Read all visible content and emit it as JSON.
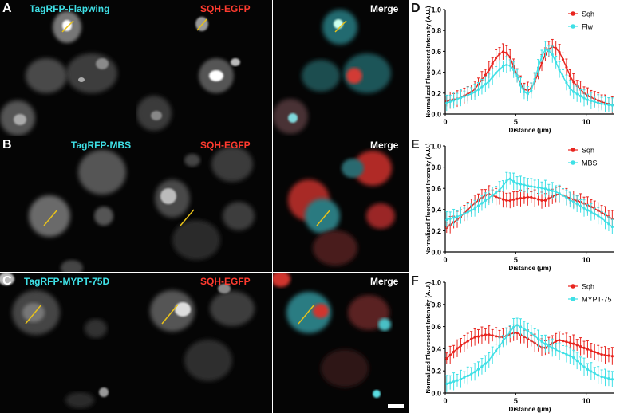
{
  "figure": {
    "rows": [
      {
        "letter": "A",
        "channels": [
          {
            "label": "TagRFP-Flapwing",
            "color": "#3fe0e6"
          },
          {
            "label": "SQH-EGFP",
            "color": "#ff3b2f"
          },
          {
            "label": "Merge",
            "color": "#ffffff"
          }
        ]
      },
      {
        "letter": "B",
        "channels": [
          {
            "label": "TagRFP-MBS",
            "color": "#3fe0e6"
          },
          {
            "label": "SQH-EGFP",
            "color": "#ff3b2f"
          },
          {
            "label": "Merge",
            "color": "#ffffff"
          }
        ]
      },
      {
        "letter": "C",
        "channels": [
          {
            "label": "TagRFP-MYPT-75D",
            "color": "#3fe0e6"
          },
          {
            "label": "SQH-EGFP",
            "color": "#ff3b2f"
          },
          {
            "label": "Merge",
            "color": "#ffffff"
          }
        ]
      }
    ]
  },
  "chart_data": [
    {
      "type": "line",
      "panel": "D",
      "xlabel": "Distance (μm)",
      "ylabel": "Normalized Fluorescent Intensity (A.U.)",
      "xlim": [
        0,
        12
      ],
      "ylim": [
        0,
        1.0
      ],
      "xticks": [
        0,
        5,
        10
      ],
      "yticks": [
        0.0,
        0.2,
        0.4,
        0.6,
        0.8,
        1.0
      ],
      "legend": "top-right",
      "x": [
        0,
        1,
        2,
        3,
        3.5,
        4,
        4.5,
        5,
        5.5,
        6,
        6.5,
        7,
        7.5,
        8,
        8.5,
        9,
        10,
        11,
        12
      ],
      "series": [
        {
          "name": "Sqh",
          "color": "#e8251f",
          "values": [
            0.12,
            0.15,
            0.22,
            0.4,
            0.52,
            0.6,
            0.58,
            0.4,
            0.24,
            0.22,
            0.35,
            0.55,
            0.65,
            0.62,
            0.48,
            0.32,
            0.18,
            0.12,
            0.08
          ]
        },
        {
          "name": "Flw",
          "color": "#3fe0e6",
          "values": [
            0.1,
            0.15,
            0.2,
            0.3,
            0.38,
            0.45,
            0.48,
            0.4,
            0.22,
            0.18,
            0.4,
            0.62,
            0.6,
            0.45,
            0.32,
            0.22,
            0.14,
            0.1,
            0.08
          ]
        }
      ]
    },
    {
      "type": "line",
      "panel": "E",
      "xlabel": "Distance (μm)",
      "ylabel": "Normalized Fluorescent Intensity (A.U.)",
      "xlim": [
        0,
        12
      ],
      "ylim": [
        0,
        1.0
      ],
      "xticks": [
        0,
        5,
        10
      ],
      "yticks": [
        0.0,
        0.2,
        0.4,
        0.6,
        0.8,
        1.0
      ],
      "legend": "top-right",
      "x": [
        0,
        1,
        2,
        3,
        4,
        4.5,
        5,
        6,
        7,
        8,
        9,
        10,
        11,
        12
      ],
      "series": [
        {
          "name": "Sqh",
          "color": "#e8251f",
          "values": [
            0.22,
            0.32,
            0.45,
            0.55,
            0.5,
            0.48,
            0.5,
            0.52,
            0.48,
            0.55,
            0.5,
            0.45,
            0.38,
            0.3
          ]
        },
        {
          "name": "MBS",
          "color": "#3fe0e6",
          "values": [
            0.3,
            0.34,
            0.4,
            0.5,
            0.6,
            0.7,
            0.65,
            0.62,
            0.6,
            0.56,
            0.48,
            0.4,
            0.33,
            0.22
          ]
        }
      ]
    },
    {
      "type": "line",
      "panel": "F",
      "xlabel": "Distance (μm)",
      "ylabel": "Normalized Fluorescent Intensity (A.U.)",
      "xlim": [
        0,
        12
      ],
      "ylim": [
        0,
        1.0
      ],
      "xticks": [
        0,
        5,
        10
      ],
      "yticks": [
        0.0,
        0.2,
        0.4,
        0.6,
        0.8,
        1.0
      ],
      "legend": "top-right",
      "x": [
        0,
        1,
        2,
        3,
        4,
        5,
        6,
        7,
        8,
        9,
        10,
        11,
        12
      ],
      "series": [
        {
          "name": "Sqh",
          "color": "#e8251f",
          "values": [
            0.3,
            0.42,
            0.5,
            0.53,
            0.5,
            0.55,
            0.48,
            0.4,
            0.48,
            0.45,
            0.4,
            0.35,
            0.33
          ]
        },
        {
          "name": "MYPT-75",
          "color": "#3fe0e6",
          "values": [
            0.08,
            0.12,
            0.18,
            0.28,
            0.45,
            0.62,
            0.55,
            0.45,
            0.38,
            0.33,
            0.22,
            0.15,
            0.12
          ]
        }
      ]
    }
  ]
}
